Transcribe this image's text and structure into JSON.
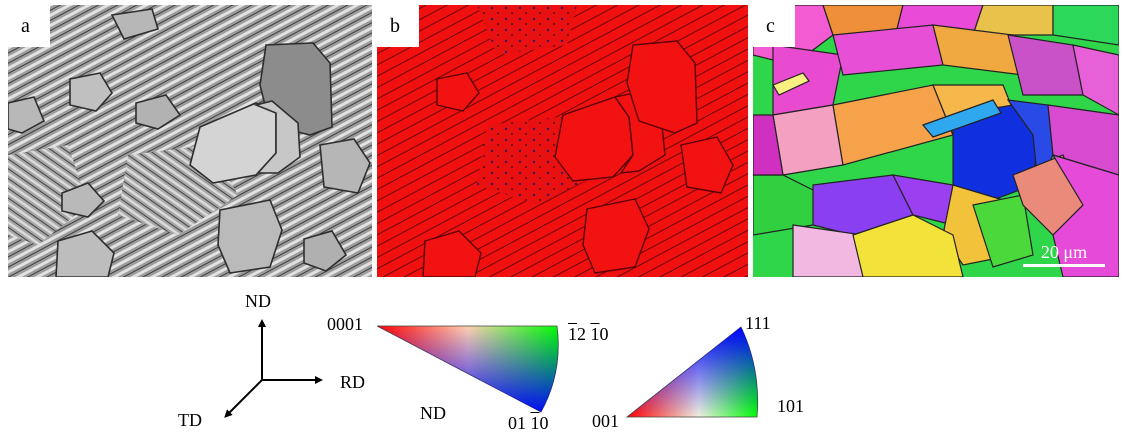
{
  "panels": [
    {
      "label": "a",
      "style": "band-contrast grayscale"
    },
    {
      "label": "b",
      "style": "phase map",
      "color": "#f01010"
    },
    {
      "label": "c",
      "style": "inverse pole figure orientation map"
    }
  ],
  "scale_bar": {
    "text": "20 μm"
  },
  "axes": {
    "up": "ND",
    "right": "RD",
    "diagonal": "TD"
  },
  "hcp_triangle": {
    "corner_top_left": "0001",
    "corner_top_right_parts": [
      "1",
      "2",
      "1",
      "0"
    ],
    "corner_bottom_parts": [
      "01",
      "1",
      "0"
    ],
    "label": "ND",
    "colors": [
      "#ff0000",
      "#00ff00",
      "#0000ff"
    ]
  },
  "cubic_triangle": {
    "corner_left": "001",
    "corner_right": "101",
    "corner_top": "111",
    "colors": [
      "#ff0000",
      "#00ff00",
      "#0000ff"
    ]
  }
}
